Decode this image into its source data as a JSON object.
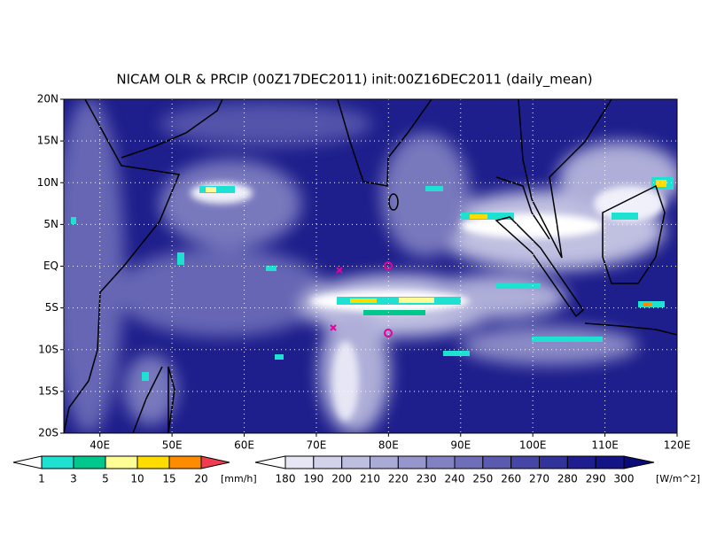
{
  "title": "NICAM OLR & PRCIP (00Z17DEC2011) init:00Z16DEC2011 (daily_mean)",
  "xlim": [
    35,
    120
  ],
  "ylim": [
    -20,
    20
  ],
  "grid": true,
  "lon_ticks": [
    {
      "value": 40,
      "label": "40E"
    },
    {
      "value": 50,
      "label": "50E"
    },
    {
      "value": 60,
      "label": "60E"
    },
    {
      "value": 70,
      "label": "70E"
    },
    {
      "value": 80,
      "label": "80E"
    },
    {
      "value": 90,
      "label": "90E"
    },
    {
      "value": 100,
      "label": "100E"
    },
    {
      "value": 110,
      "label": "110E"
    },
    {
      "value": 120,
      "label": "120E"
    }
  ],
  "lat_ticks": [
    {
      "value": 20,
      "label": "20N"
    },
    {
      "value": 15,
      "label": "15N"
    },
    {
      "value": 10,
      "label": "10N"
    },
    {
      "value": 5,
      "label": "5N"
    },
    {
      "value": 0,
      "label": "EQ"
    },
    {
      "value": -5,
      "label": "5S"
    },
    {
      "value": -10,
      "label": "10S"
    },
    {
      "value": -15,
      "label": "15S"
    },
    {
      "value": -20,
      "label": "20S"
    }
  ],
  "colorbars": [
    {
      "levels": [
        1,
        3,
        5,
        10,
        15,
        20
      ],
      "units": "[mm/h]",
      "colors": [
        "#ffffff",
        "#1ee1d2",
        "#00c88c",
        "#ffff96",
        "#ffdc00",
        "#ff8c00",
        "#f03c50"
      ]
    },
    {
      "levels": [
        180,
        190,
        200,
        210,
        220,
        230,
        240,
        250,
        260,
        270,
        280,
        290,
        300
      ],
      "units": "[W/m^2]",
      "colors": [
        "#ffffff",
        "#e6e6f5",
        "#d2d2eb",
        "#bebee1",
        "#aaaad7",
        "#9696cd",
        "#8282c3",
        "#6e6eb9",
        "#5a5aaf",
        "#4646a5",
        "#32329b",
        "#1e1e91",
        "#141487",
        "#0a0a78"
      ]
    }
  ]
}
